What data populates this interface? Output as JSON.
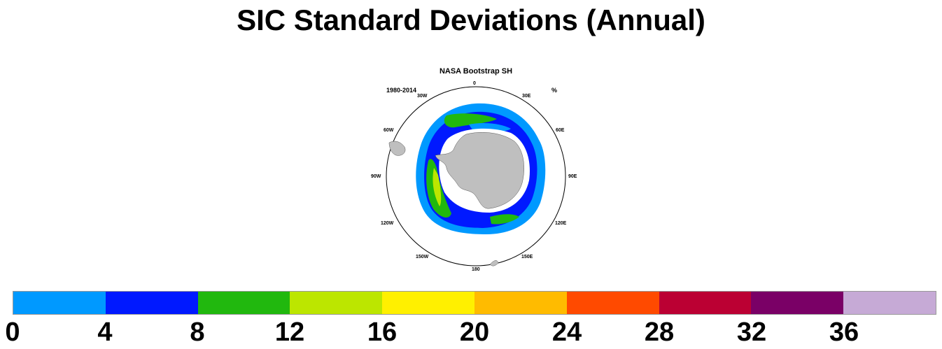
{
  "title": "SIC Standard Deviations (Annual)",
  "map": {
    "subtitle": "NASA Bootstrap SH",
    "period": "1980-2014",
    "units": "%",
    "longitude_labels": {
      "n": "0",
      "nne": "30E",
      "ene": "60E",
      "e": "90E",
      "ese": "120E",
      "sse": "150E",
      "s": "180",
      "ssw": "150W",
      "wsw": "120W",
      "w": "90W",
      "wnw": "60W",
      "nnw": "30W"
    }
  },
  "colorbar": {
    "colors": [
      "#0099ff",
      "#0019ff",
      "#21b80e",
      "#bce600",
      "#fff000",
      "#ffbb00",
      "#ff4a00",
      "#bb0033",
      "#7a0066",
      "#c6aad6"
    ],
    "ticks": [
      "0",
      "4",
      "8",
      "12",
      "16",
      "20",
      "24",
      "28",
      "32",
      "36"
    ]
  }
}
